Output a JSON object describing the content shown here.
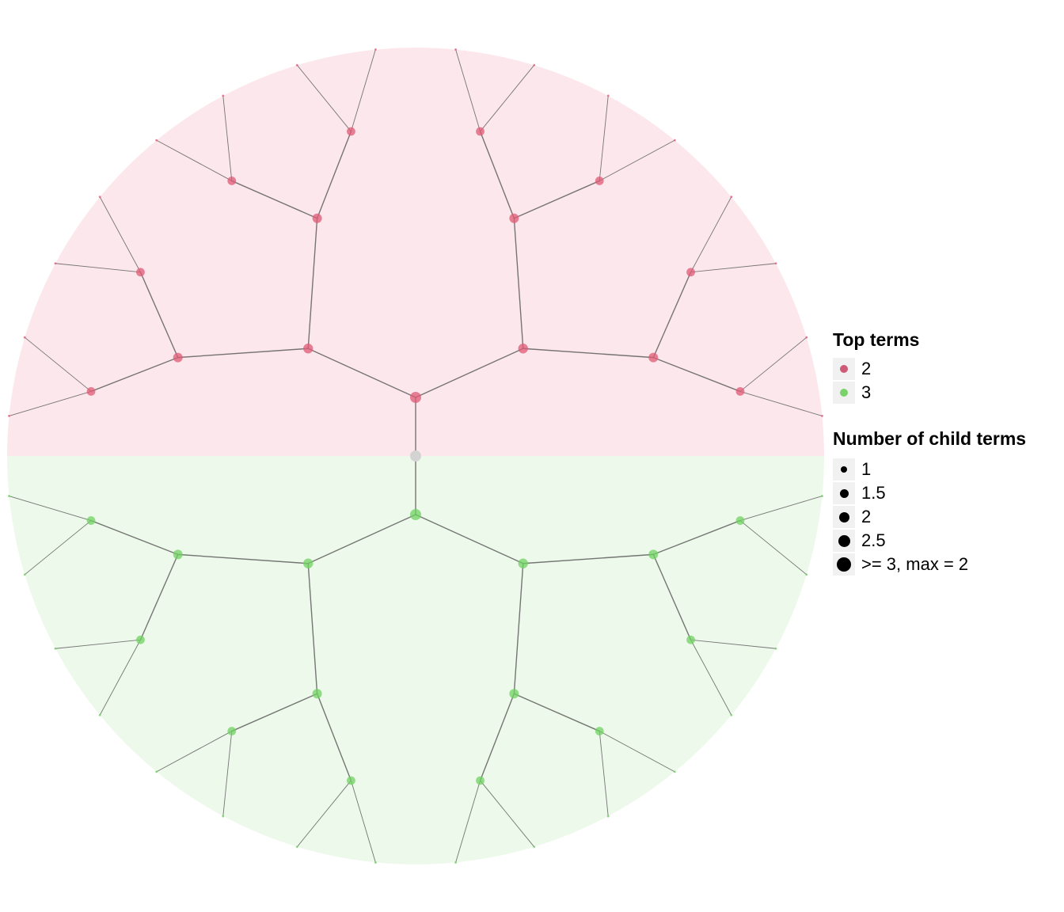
{
  "diagram": {
    "type": "circular-hierarchy",
    "levels": 5,
    "groups": [
      {
        "name": "2",
        "color": "#e05a74",
        "fill": "#fce8ec",
        "half": "top"
      },
      {
        "name": "3",
        "color": "#6fd262",
        "fill": "#edf9ea",
        "half": "bottom"
      }
    ],
    "root_color": "#d3d3d3",
    "edge_color": "#555555"
  },
  "legend": {
    "top_terms": {
      "title": "Top terms",
      "items": [
        {
          "label": "2",
          "color": "#cf5a76"
        },
        {
          "label": "3",
          "color": "#7ad26b"
        }
      ]
    },
    "child_terms": {
      "title": "Number of child terms",
      "items": [
        {
          "label": "1",
          "value": 1
        },
        {
          "label": "1.5",
          "value": 1.5
        },
        {
          "label": "2",
          "value": 2
        },
        {
          "label": "2.5",
          "value": 2.5
        },
        {
          "label": ">= 3, max = 2",
          "value": 3
        }
      ]
    }
  }
}
